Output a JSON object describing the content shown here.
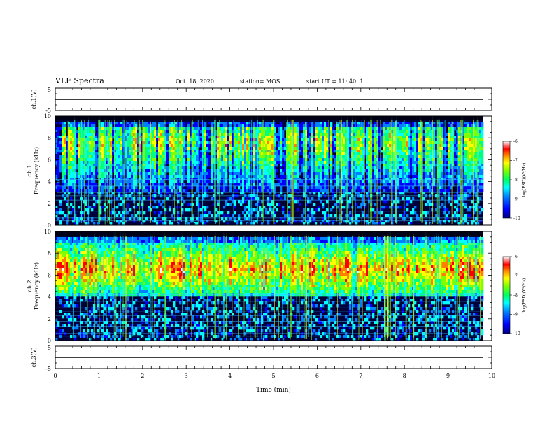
{
  "header": {
    "title": "VLF Spectra",
    "date": "Oct. 18, 2020",
    "station": "station= MOS",
    "start": "start  UT  =   11: 40: 1"
  },
  "colors": {
    "colormap": [
      "#000080",
      "#0000ff",
      "#0080ff",
      "#00ffff",
      "#00ff80",
      "#80ff00",
      "#ffff00",
      "#ff8000",
      "#ff0000",
      "#ffffff"
    ],
    "background": "#00003a"
  },
  "chart_data": [
    {
      "id": "ch1-waveform",
      "type": "line",
      "ylabel": "ch.1(V)",
      "xlim": [
        0,
        10
      ],
      "ylim": [
        -5,
        5
      ],
      "yticks": [
        "5",
        "-5"
      ],
      "series": [
        {
          "x": [
            0,
            9.8
          ],
          "values": [
            0,
            0
          ]
        }
      ]
    },
    {
      "id": "ch1-spectrogram",
      "type": "heatmap",
      "ylabel": "ch.1 Frequency (kHz)",
      "xlim": [
        0,
        10
      ],
      "ylim": [
        0,
        10
      ],
      "yticks": [
        "0",
        "2",
        "4",
        "6",
        "8",
        "10"
      ],
      "data_x_end": 9.8,
      "intense_band_khz": [
        3,
        9
      ],
      "colorbar": {
        "label": "log(PSD)(V²/Hz)",
        "range": [
          -10,
          -6
        ],
        "ticks": [
          "-6",
          "-7",
          "-8",
          "-9",
          "-10"
        ]
      }
    },
    {
      "id": "ch2-spectrogram",
      "type": "heatmap",
      "ylabel": "ch.2 Frequency (kHz)",
      "xlim": [
        0,
        10
      ],
      "ylim": [
        0,
        10
      ],
      "yticks": [
        "0",
        "2",
        "4",
        "6",
        "8",
        "10"
      ],
      "data_x_end": 9.8,
      "intense_band_khz": [
        4,
        9
      ],
      "peak_khz": 6.5,
      "colorbar": {
        "label": "log(PSD)(V²/Hz)",
        "range": [
          -10,
          -6
        ],
        "ticks": [
          "-6",
          "-7",
          "-8",
          "-9",
          "-10"
        ]
      }
    },
    {
      "id": "ch3-waveform",
      "type": "line",
      "ylabel": "ch.3(V)",
      "xlim": [
        0,
        10
      ],
      "ylim": [
        -5,
        5
      ],
      "yticks": [
        "5",
        "-5"
      ],
      "xlabel": "Time (min)",
      "xticks": [
        "0",
        "1",
        "2",
        "3",
        "4",
        "5",
        "6",
        "7",
        "8",
        "9",
        "10"
      ],
      "series": [
        {
          "x": [
            0,
            9.8
          ],
          "values": [
            0,
            0
          ]
        }
      ]
    }
  ]
}
